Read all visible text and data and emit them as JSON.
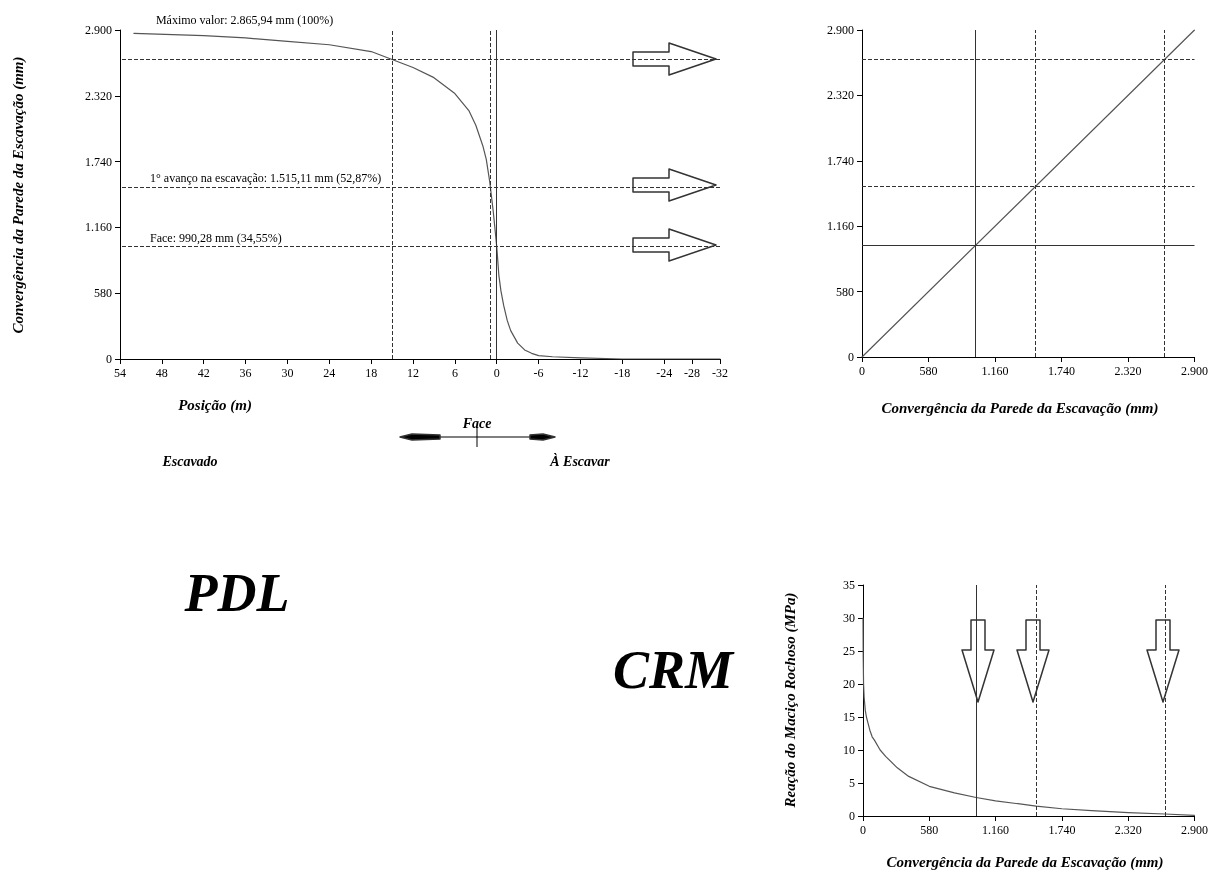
{
  "chart_data": [
    {
      "type": "line",
      "title": "PDL",
      "xlabel": "Posição (m)",
      "ylabel": "Convergência da Parede da Escavação (mm)",
      "x": [
        52,
        42,
        36,
        30,
        24,
        18,
        15,
        12,
        9,
        6,
        4,
        3,
        2,
        1.5,
        1,
        0.5,
        0,
        -0.3,
        -0.6,
        -1,
        -1.5,
        -2,
        -3,
        -4,
        -5,
        -6,
        -8,
        -12,
        -18,
        -24,
        -32
      ],
      "values": [
        2870,
        2850,
        2830,
        2800,
        2770,
        2710,
        2640,
        2570,
        2480,
        2340,
        2190,
        2060,
        1880,
        1760,
        1560,
        1300,
        990,
        740,
        600,
        470,
        340,
        250,
        140,
        80,
        50,
        30,
        20,
        10,
        0,
        0,
        0
      ],
      "color": "#555555",
      "marker": "none",
      "xlim": [
        54,
        -32
      ],
      "xticks": [
        54,
        48,
        42,
        36,
        30,
        24,
        18,
        12,
        6,
        0,
        -6,
        -12,
        -18,
        -24,
        -28,
        -32
      ],
      "ylim": [
        0,
        2900
      ],
      "yticks": [
        0,
        580,
        {
          "value": 1160,
          "label": "1.160"
        },
        {
          "value": 1740,
          "label": "1.740"
        },
        {
          "value": 2320,
          "label": "2.320"
        },
        {
          "value": 2900,
          "label": "2.900"
        }
      ],
      "ref_lines": [
        {
          "axis": "y",
          "value": 2640,
          "line_style": "dashed"
        },
        {
          "axis": "y",
          "value": 1515.11,
          "label": "1° avanço na escavação: 1.515,11 mm (52,87%)",
          "line_style": "dashed"
        },
        {
          "axis": "y",
          "value": 990.28,
          "label": "Face: 990,28 mm (34,55%)",
          "line_style": "dashed"
        },
        {
          "axis": "x",
          "value": 15,
          "line_style": "dashed"
        },
        {
          "axis": "x",
          "value": 0.86,
          "line_style": "dashed"
        },
        {
          "axis": "x",
          "value": 0,
          "line_style": "solid"
        }
      ],
      "annotations": [
        {
          "text": "Máximo valor: 2.865,94 mm (100%)",
          "x": 52,
          "y": 2865.94
        },
        "Face",
        "Escavado",
        "À Escavar"
      ]
    },
    {
      "type": "line",
      "xlabel": "Convergência da Parede da Escavação (mm)",
      "x": [
        0,
        2900
      ],
      "values": [
        0,
        2900
      ],
      "color": "#555555",
      "marker": "none",
      "xlim": [
        0,
        2900
      ],
      "xticks": [
        0,
        580,
        {
          "value": 1160,
          "label": "1.160"
        },
        {
          "value": 1740,
          "label": "1.740"
        },
        {
          "value": 2320,
          "label": "2.320"
        },
        {
          "value": 2900,
          "label": "2.900"
        }
      ],
      "ylim": [
        0,
        2900
      ],
      "yticks": [
        0,
        580,
        {
          "value": 1160,
          "label": "1.160"
        },
        {
          "value": 1740,
          "label": "1.740"
        },
        {
          "value": 2320,
          "label": "2.320"
        },
        {
          "value": 2900,
          "label": "2.900"
        }
      ],
      "ref_lines": [
        {
          "axis": "x",
          "value": 990.28,
          "line_style": "solid"
        },
        {
          "axis": "x",
          "value": 1515.11,
          "line_style": "dashed"
        },
        {
          "axis": "x",
          "value": 2640,
          "line_style": "dashed"
        },
        {
          "axis": "y",
          "value": 990.28,
          "line_style": "solid"
        },
        {
          "axis": "y",
          "value": 1515.11,
          "line_style": "dashed"
        },
        {
          "axis": "y",
          "value": 2640,
          "line_style": "dashed"
        }
      ]
    },
    {
      "type": "line",
      "title": "CRM",
      "xlabel": "Convergência da Parede da Escavação (mm)",
      "ylabel": "Reação do Maciço Rochoso (MPa)",
      "x": [
        0,
        2,
        5,
        10,
        20,
        30,
        45,
        60,
        80,
        100,
        150,
        200,
        300,
        400,
        580,
        800,
        990,
        1160,
        1515,
        1740,
        2000,
        2320,
        2640,
        2900
      ],
      "values": [
        30,
        24,
        20,
        18,
        16,
        15,
        14,
        13,
        12,
        11.5,
        10,
        9,
        7.3,
        6,
        4.5,
        3.5,
        2.8,
        2.3,
        1.5,
        1.1,
        0.8,
        0.5,
        0.3,
        0.1
      ],
      "color": "#555555",
      "marker": "none",
      "xlim": [
        0,
        2900
      ],
      "xticks": [
        0,
        580,
        {
          "value": 1160,
          "label": "1.160"
        },
        {
          "value": 1740,
          "label": "1.740"
        },
        {
          "value": 2320,
          "label": "2.320"
        },
        {
          "value": 2900,
          "label": "2.900"
        }
      ],
      "ylim": [
        0,
        35
      ],
      "yticks": [
        0,
        5,
        10,
        15,
        20,
        25,
        30,
        35
      ],
      "ref_lines": [
        {
          "axis": "x",
          "value": 990.28,
          "line_style": "solid"
        },
        {
          "axis": "x",
          "value": 1515.11,
          "line_style": "dashed"
        },
        {
          "axis": "x",
          "value": 2640,
          "line_style": "dashed"
        }
      ]
    }
  ]
}
